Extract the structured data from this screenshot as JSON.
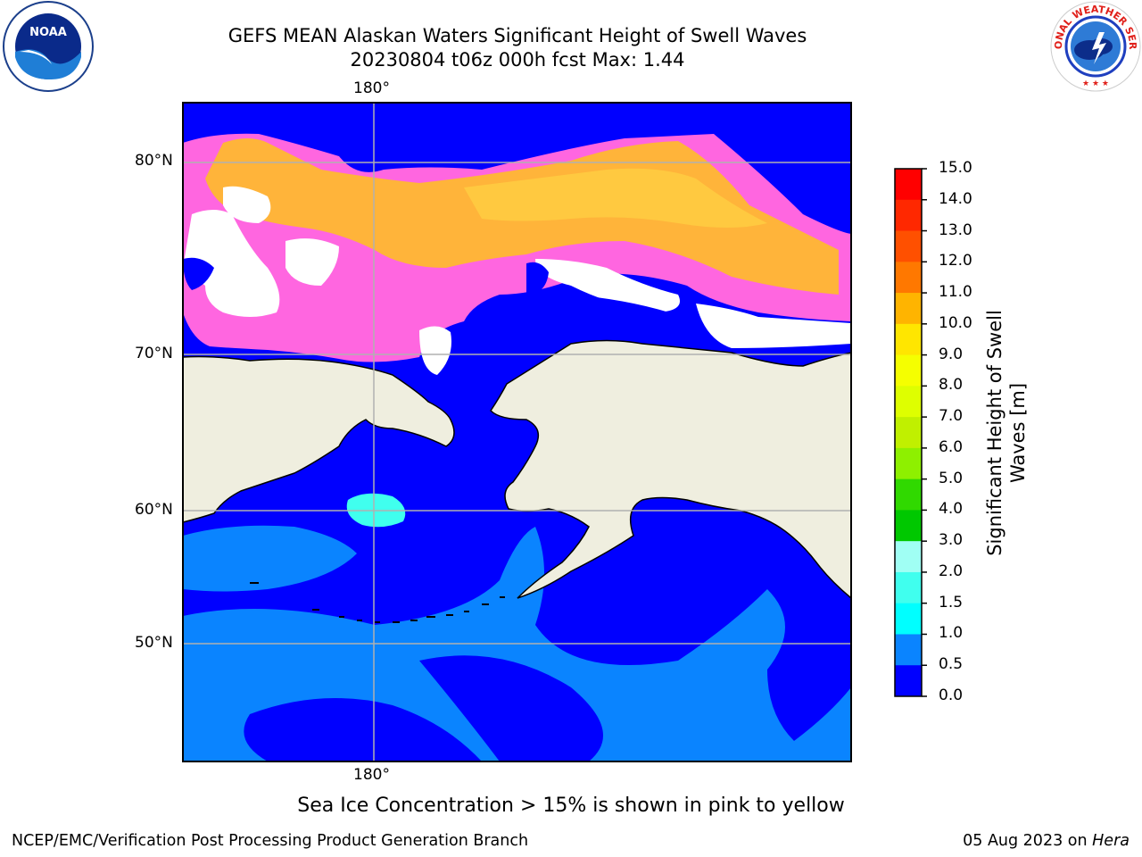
{
  "title_line1": "GEFS MEAN Alaskan Waters Significant Height of Swell Waves",
  "title_line2": "20230804 t06z 000h fcst   Max: 1.44",
  "axes": {
    "lon_top": "180°",
    "lon_bottom": "180°",
    "lat_labels": [
      "80°N",
      "70°N",
      "60°N",
      "50°N"
    ]
  },
  "colorbar": {
    "label_line1": "Significant Height of Swell",
    "label_line2": "Waves [m]",
    "ticks": [
      "15.0",
      "14.0",
      "13.0",
      "12.0",
      "11.0",
      "10.0",
      "9.0",
      "8.0",
      "7.0",
      "6.0",
      "5.0",
      "4.0",
      "3.0",
      "2.0",
      "1.5",
      "1.0",
      "0.5",
      "0.0"
    ],
    "colors": [
      "#ff0000",
      "#ff2800",
      "#ff5000",
      "#ff7800",
      "#ff9a00",
      "#ffb400",
      "#ffe600",
      "#f5ff00",
      "#deff00",
      "#c0f000",
      "#8ef000",
      "#30d900",
      "#00c800",
      "#46f47a",
      "#a0fff4",
      "#40ffee",
      "#00ffff",
      "#0a84ff",
      "#0000ff"
    ]
  },
  "note": "Sea Ice Concentration > 15% is shown in pink to yellow",
  "footer": {
    "left": "NCEP/EMC/Verification Post Processing Product Generation Branch",
    "right_prefix": "05 Aug 2023 on ",
    "right_italic": "Hera"
  },
  "logos": {
    "noaa_text": "NOAA",
    "nws_ring_text": "NATIONAL WEATHER SERVICE"
  }
}
